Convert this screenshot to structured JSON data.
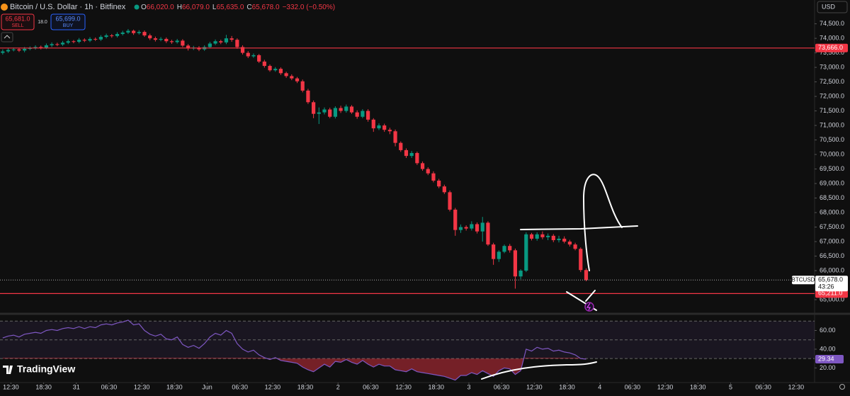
{
  "header": {
    "title": "Bitcoin / U.S. Dollar · 1h · Bitfinex",
    "ohlc": [
      {
        "key": "O",
        "value": "66,020.0"
      },
      {
        "key": "H",
        "value": "66,079.0"
      },
      {
        "key": "L",
        "value": "65,635.0"
      },
      {
        "key": "C",
        "value": "65,678.0"
      }
    ],
    "change": "−332.0 (−0.50%)"
  },
  "trade": {
    "sell_price": "65,681.0",
    "sell": "SELL",
    "spread": "18.0",
    "buy_price": "65,699.0",
    "buy": "BUY"
  },
  "currency": "USD",
  "brand": "TradingView",
  "chart_data": {
    "type": "candlestick",
    "up_color": "#089981",
    "down_color": "#f23645",
    "xlim": [
      -0.5,
      148.9
    ],
    "xticks": [
      {
        "value": 1.5,
        "label": "12:30"
      },
      {
        "value": 7.5,
        "label": "18:30"
      },
      {
        "value": 13.5,
        "label": "31"
      },
      {
        "value": 19.5,
        "label": "06:30"
      },
      {
        "value": 25.5,
        "label": "12:30"
      },
      {
        "value": 31.5,
        "label": "18:30"
      },
      {
        "value": 37.5,
        "label": "Jun"
      },
      {
        "value": 43.5,
        "label": "06:30"
      },
      {
        "value": 49.5,
        "label": "12:30"
      },
      {
        "value": 55.5,
        "label": "18:30"
      },
      {
        "value": 61.5,
        "label": "2"
      },
      {
        "value": 67.5,
        "label": "06:30"
      },
      {
        "value": 73.5,
        "label": "12:30"
      },
      {
        "value": 79.5,
        "label": "18:30"
      },
      {
        "value": 85.5,
        "label": "3"
      },
      {
        "value": 91.5,
        "label": "06:30"
      },
      {
        "value": 97.5,
        "label": "12:30"
      },
      {
        "value": 103.5,
        "label": "18:30"
      },
      {
        "value": 109.5,
        "label": "4"
      },
      {
        "value": 115.5,
        "label": "06:30"
      },
      {
        "value": 121.5,
        "label": "12:30"
      },
      {
        "value": 127.5,
        "label": "18:30"
      },
      {
        "value": 133.5,
        "label": "5"
      },
      {
        "value": 139.5,
        "label": "06:30"
      },
      {
        "value": 145.5,
        "label": "12:30"
      }
    ],
    "ylim": [
      64537,
      75320
    ],
    "yticks": [
      {
        "value": 65000,
        "label": "65,000.0"
      },
      {
        "value": 66000,
        "label": "66,000.0"
      },
      {
        "value": 66500,
        "label": "66,500.0"
      },
      {
        "value": 67000,
        "label": "67,000.0"
      },
      {
        "value": 67500,
        "label": "67,500.0"
      },
      {
        "value": 68000,
        "label": "68,000.0"
      },
      {
        "value": 68500,
        "label": "68,500.0"
      },
      {
        "value": 69000,
        "label": "69,000.0"
      },
      {
        "value": 69500,
        "label": "69,500.0"
      },
      {
        "value": 70000,
        "label": "70,000.0"
      },
      {
        "value": 70500,
        "label": "70,500.0"
      },
      {
        "value": 71000,
        "label": "71,000.0"
      },
      {
        "value": 71500,
        "label": "71,500.0"
      },
      {
        "value": 72000,
        "label": "72,000.0"
      },
      {
        "value": 72500,
        "label": "72,500.0"
      },
      {
        "value": 73000,
        "label": "73,000.0"
      },
      {
        "value": 73500,
        "label": "73,500.0"
      },
      {
        "value": 74000,
        "label": "74,000.0"
      },
      {
        "value": 74500,
        "label": "74,500.0"
      }
    ],
    "open": [
      73500,
      73550,
      73600,
      73620,
      73580,
      73640,
      73660,
      73700,
      73680,
      73760,
      73800,
      73790,
      73850,
      73900,
      73880,
      73950,
      73920,
      73980,
      73960,
      74050,
      74100,
      74080,
      74150,
      74200,
      74260,
      74180,
      74220,
      74100,
      74000,
      73950,
      73980,
      73900,
      73870,
      73920,
      73750,
      73650,
      73680,
      73620,
      73700,
      73820,
      73900,
      73860,
      74000,
      73950,
      73700,
      73500,
      73380,
      73420,
      73200,
      73050,
      72900,
      72950,
      72800,
      72700,
      72620,
      72520,
      72200,
      71800,
      71400,
      71450,
      71550,
      71300,
      71600,
      71500,
      71650,
      71450,
      71300,
      71500,
      71200,
      70900,
      71000,
      70850,
      70800,
      70400,
      70150,
      69950,
      70050,
      69700,
      69500,
      69350,
      69100,
      68900,
      68700,
      68100,
      67400,
      67500,
      67450,
      67600,
      67350,
      67650,
      66900,
      66400,
      66650,
      66850,
      66700,
      65800,
      66000,
      67250,
      67100,
      67250,
      67150,
      67200,
      67050,
      67100,
      67000,
      66900,
      66750,
      66020
    ],
    "high": [
      73620,
      73660,
      73680,
      73670,
      73700,
      73720,
      73760,
      73750,
      73820,
      73860,
      73850,
      73910,
      73960,
      73940,
      74010,
      74000,
      74040,
      74030,
      74110,
      74160,
      74150,
      74210,
      74260,
      74320,
      74300,
      74280,
      74270,
      74160,
      74060,
      74040,
      74030,
      73950,
      73980,
      73970,
      73800,
      73740,
      73730,
      73760,
      73880,
      73960,
      73950,
      74120,
      74080,
      74000,
      73760,
      73560,
      73480,
      73460,
      73260,
      73100,
      73010,
      73000,
      72850,
      72760,
      72670,
      72580,
      72260,
      71860,
      71620,
      71620,
      71610,
      71660,
      71680,
      71720,
      71700,
      71520,
      71560,
      71560,
      71250,
      71070,
      71060,
      70920,
      70860,
      70450,
      70210,
      70120,
      70100,
      69760,
      69560,
      69420,
      69160,
      68960,
      68760,
      68160,
      67590,
      67560,
      67700,
      67660,
      67850,
      67700,
      66960,
      66700,
      66900,
      66920,
      66760,
      66050,
      67320,
      67300,
      67320,
      67350,
      67280,
      67260,
      67200,
      67180,
      67060,
      66960,
      66800,
      66079
    ],
    "low": [
      73440,
      73500,
      73550,
      73530,
      73520,
      73590,
      73610,
      73620,
      73630,
      73700,
      73730,
      73740,
      73800,
      73830,
      73830,
      73870,
      73870,
      73910,
      73910,
      74000,
      74020,
      74030,
      74100,
      74150,
      74120,
      74130,
      74050,
      73940,
      73890,
      73900,
      73840,
      73810,
      73820,
      73700,
      73580,
      73600,
      73560,
      73570,
      73650,
      73770,
      73800,
      73800,
      73880,
      73640,
      73440,
      73320,
      73330,
      73150,
      72990,
      72850,
      72850,
      72740,
      72640,
      72560,
      72460,
      72140,
      71740,
      71250,
      71050,
      71380,
      71250,
      71240,
      71430,
      71440,
      71400,
      71230,
      71250,
      71130,
      70780,
      70840,
      70780,
      70700,
      70280,
      70090,
      69880,
      69880,
      69640,
      69440,
      69290,
      69040,
      68840,
      68640,
      68040,
      67200,
      67300,
      67380,
      67380,
      67280,
      67000,
      66850,
      66200,
      66300,
      66600,
      66620,
      65380,
      65700,
      65950,
      67040,
      67030,
      67080,
      67050,
      66980,
      66970,
      66940,
      66830,
      66700,
      65950,
      65635
    ],
    "close": [
      73550,
      73600,
      73620,
      73580,
      73640,
      73660,
      73700,
      73680,
      73760,
      73800,
      73790,
      73850,
      73900,
      73880,
      73950,
      73920,
      73980,
      73960,
      74050,
      74100,
      74080,
      74150,
      74200,
      74260,
      74180,
      74220,
      74100,
      74000,
      73950,
      73980,
      73900,
      73870,
      73920,
      73750,
      73650,
      73680,
      73620,
      73700,
      73820,
      73900,
      73860,
      74000,
      73950,
      73700,
      73500,
      73380,
      73420,
      73200,
      73050,
      72900,
      72950,
      72800,
      72700,
      72620,
      72520,
      72200,
      71800,
      71400,
      71450,
      71550,
      71300,
      71600,
      71500,
      71650,
      71450,
      71300,
      71500,
      71200,
      70900,
      71000,
      70850,
      70800,
      70400,
      70150,
      69950,
      70050,
      69700,
      69500,
      69350,
      69100,
      68900,
      68700,
      68100,
      67400,
      67500,
      67450,
      67600,
      67350,
      67650,
      66900,
      66400,
      66650,
      66850,
      66700,
      65800,
      66000,
      67250,
      67100,
      67250,
      67150,
      67200,
      67050,
      67100,
      67000,
      66900,
      66750,
      66020,
      65678
    ],
    "price_lines": [
      {
        "value": 73666,
        "label": "73,666.0",
        "color": "#f23645"
      },
      {
        "value": 65211,
        "label": "65,211.0",
        "color": "#f23645"
      }
    ],
    "last_price": {
      "value": 65678,
      "label": "65,678.0",
      "symbol": "BTCUSD",
      "countdown": "43:26"
    },
    "rsi": {
      "color": "#7e57c2",
      "ylim": [
        4.4,
        75.5
      ],
      "yticks": [
        {
          "value": 20,
          "label": "20.00"
        },
        {
          "value": 40,
          "label": "40.00"
        },
        {
          "value": 60,
          "label": "60.00"
        }
      ],
      "levels": [
        70,
        50,
        30
      ],
      "values": [
        52,
        54,
        55,
        53,
        56,
        57,
        58,
        57,
        60,
        61,
        60,
        62,
        63,
        62,
        64,
        62,
        64,
        63,
        66,
        67,
        66,
        68,
        69,
        71,
        66,
        67,
        60,
        56,
        54,
        56,
        51,
        50,
        53,
        45,
        42,
        44,
        41,
        46,
        53,
        57,
        55,
        60,
        57,
        46,
        40,
        37,
        39,
        34,
        31,
        29,
        31,
        28,
        27,
        26,
        25,
        21,
        18,
        16,
        20,
        24,
        21,
        27,
        26,
        29,
        26,
        24,
        28,
        24,
        21,
        24,
        22,
        22,
        18,
        17,
        16,
        19,
        16,
        15,
        14,
        13,
        12,
        11,
        9,
        7,
        12,
        12,
        15,
        13,
        17,
        14,
        11,
        17,
        20,
        19,
        13,
        17,
        40,
        38,
        42,
        40,
        41,
        38,
        39,
        37,
        36,
        34,
        30,
        29.34
      ]
    }
  }
}
